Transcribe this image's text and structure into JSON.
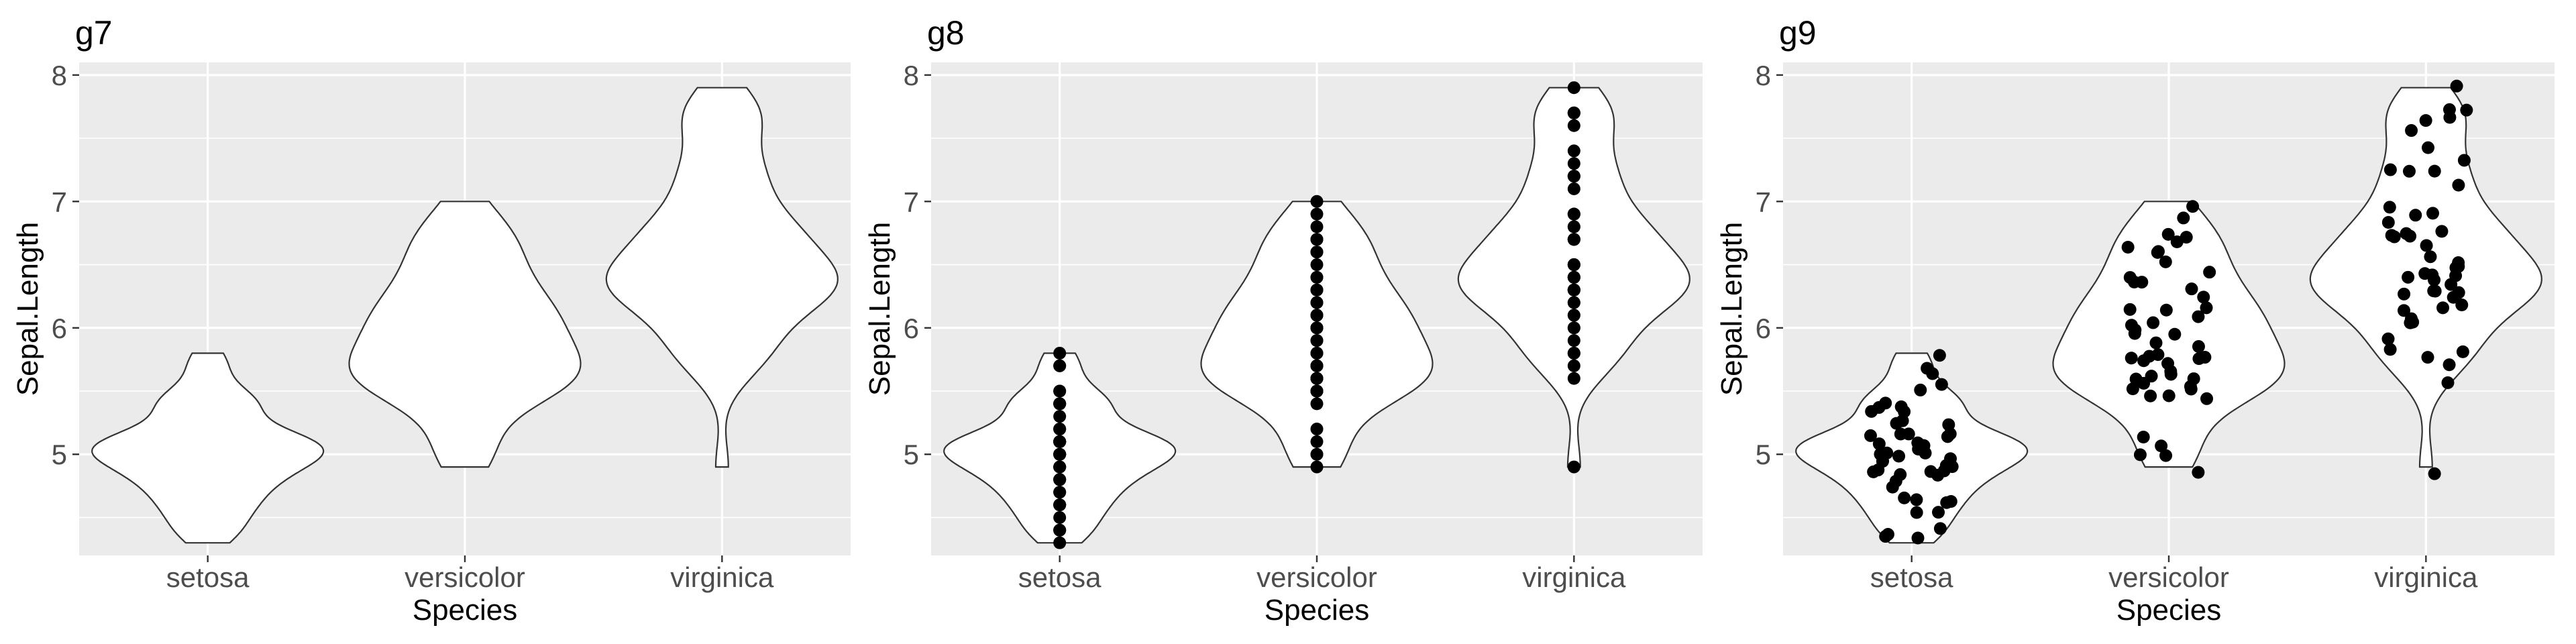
{
  "chart_data": [
    {
      "type": "violin",
      "title": "g7",
      "xlabel": "Species",
      "ylabel": "Sepal.Length",
      "categories": [
        "setosa",
        "versicolor",
        "virginica"
      ],
      "y_ticks": [
        5,
        6,
        7,
        8
      ],
      "ylim": [
        4.2,
        8.1
      ],
      "grid": true,
      "points": "none"
    },
    {
      "type": "violin",
      "title": "g8",
      "xlabel": "Species",
      "ylabel": "Sepal.Length",
      "categories": [
        "setosa",
        "versicolor",
        "virginica"
      ],
      "y_ticks": [
        5,
        6,
        7,
        8
      ],
      "ylim": [
        4.2,
        8.1
      ],
      "grid": true,
      "points": "overlaid"
    },
    {
      "type": "violin",
      "title": "g9",
      "xlabel": "Species",
      "ylabel": "Sepal.Length",
      "categories": [
        "setosa",
        "versicolor",
        "virginica"
      ],
      "y_ticks": [
        5,
        6,
        7,
        8
      ],
      "ylim": [
        4.2,
        8.1
      ],
      "grid": true,
      "points": "jittered"
    }
  ],
  "observations": {
    "setosa": [
      5.1,
      4.9,
      4.7,
      4.6,
      5.0,
      5.4,
      4.6,
      5.0,
      4.4,
      4.9,
      5.4,
      4.8,
      4.8,
      4.3,
      5.8,
      5.7,
      5.4,
      5.1,
      5.7,
      5.1,
      5.4,
      5.1,
      4.6,
      5.1,
      4.8,
      5.0,
      5.0,
      5.2,
      5.2,
      4.7,
      4.8,
      5.4,
      5.2,
      5.5,
      4.9,
      5.0,
      5.5,
      4.9,
      4.4,
      5.1,
      5.0,
      4.5,
      4.4,
      5.0,
      5.1,
      4.8,
      5.1,
      4.6,
      5.3,
      5.0
    ],
    "versicolor": [
      7.0,
      6.4,
      6.9,
      5.5,
      6.5,
      5.7,
      6.3,
      4.9,
      6.6,
      5.2,
      5.0,
      5.9,
      6.0,
      6.1,
      5.6,
      6.7,
      5.6,
      5.8,
      6.2,
      5.6,
      5.9,
      6.1,
      6.3,
      6.1,
      6.4,
      6.6,
      6.8,
      6.7,
      6.0,
      5.7,
      5.5,
      5.5,
      5.8,
      6.0,
      5.4,
      6.0,
      6.7,
      6.3,
      5.6,
      5.5,
      5.5,
      6.1,
      5.8,
      5.0,
      5.6,
      5.7,
      5.7,
      6.2,
      5.1,
      5.7
    ],
    "virginica": [
      6.3,
      5.8,
      7.1,
      6.3,
      6.5,
      7.6,
      4.9,
      7.3,
      6.7,
      7.2,
      6.5,
      6.4,
      6.8,
      5.7,
      5.8,
      6.4,
      6.5,
      7.7,
      7.7,
      6.0,
      6.9,
      5.6,
      7.7,
      6.3,
      6.7,
      7.2,
      6.2,
      6.1,
      6.4,
      7.2,
      7.4,
      7.9,
      6.4,
      6.3,
      6.1,
      7.7,
      6.3,
      6.4,
      6.0,
      6.9,
      6.7,
      6.9,
      5.8,
      6.8,
      6.7,
      6.7,
      6.3,
      6.5,
      6.2,
      5.9
    ]
  },
  "colors": {
    "panel_bg": "#ebebeb",
    "grid": "#ffffff",
    "violin_fill": "#ffffff",
    "violin_stroke": "#333333",
    "point": "#000000"
  }
}
